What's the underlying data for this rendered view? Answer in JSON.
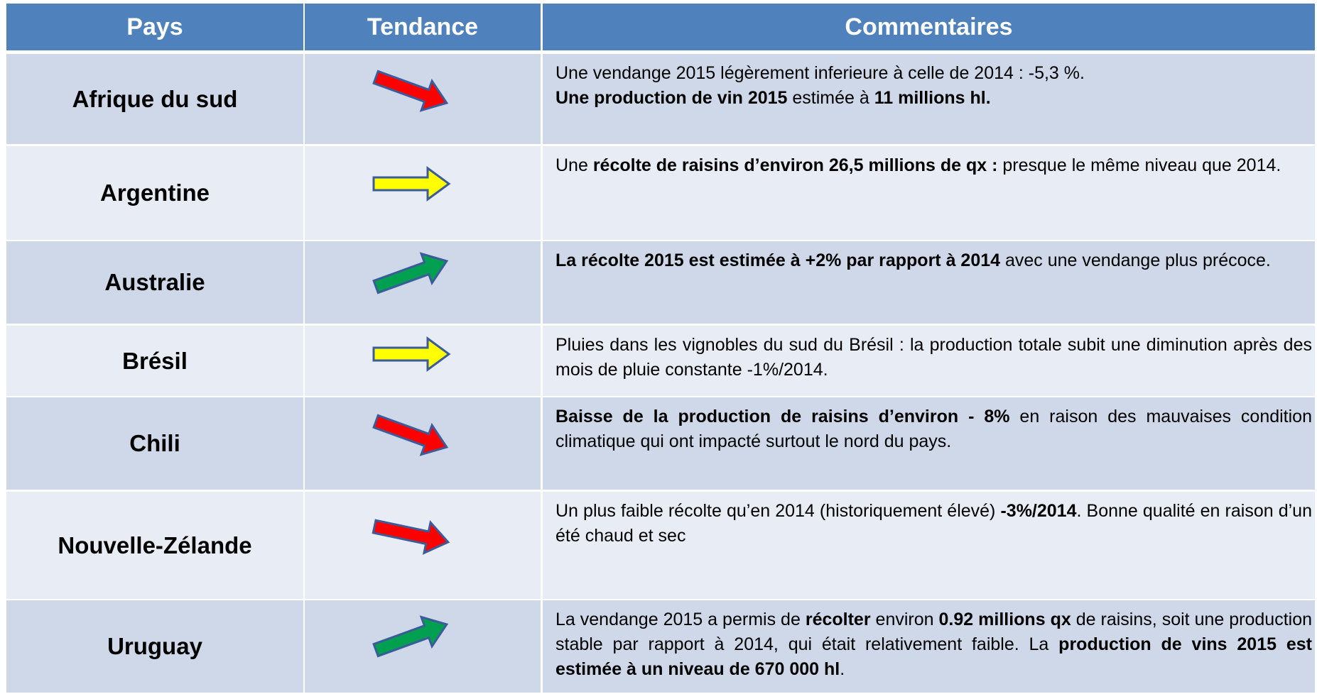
{
  "header": [
    "Pays",
    "Tendance",
    "Commentaires"
  ],
  "rows": [
    {
      "country": "Afrique du sud",
      "comment": [
        [
          {
            "text": "Une vendange 2015 légèrement inferieure à celle de 2014 : -5,3 %.",
            "bold": false
          }
        ],
        [
          {
            "text": "Une production de vin 2015",
            "bold": true
          },
          {
            "text": " estimée à ",
            "bold": false
          },
          {
            "text": "11 millions hl.",
            "bold": true
          }
        ]
      ]
    },
    {
      "country": "Argentine",
      "comment": [
        [
          {
            "text": "Une ",
            "bold": false
          },
          {
            "text": "récolte de raisins d’environ 26,5 millions de qx :",
            "bold": true
          },
          {
            "text": " presque le même niveau que 2014.",
            "bold": false
          }
        ]
      ]
    },
    {
      "country": "Australie",
      "comment": [
        [
          {
            "text": "La récolte 2015  est estimée à +2% par  rapport à 2014",
            "bold": true
          },
          {
            "text": " avec une vendange plus précoce.",
            "bold": false
          }
        ]
      ]
    },
    {
      "country": "Brésil",
      "comment": [
        [
          {
            "text": "Pluies  dans les vignobles du sud du Brésil : la production totale subit une diminution après des mois de pluie constante -1%/2014.",
            "bold": false
          }
        ]
      ]
    },
    {
      "country": "Chili",
      "comment": [
        [
          {
            "text": "Baisse de la production de raisins d’environ - 8%",
            "bold": true
          },
          {
            "text": " en raison des mauvaises condition climatique qui ont impacté surtout le nord du pays.",
            "bold": false
          }
        ]
      ]
    },
    {
      "country": "Nouvelle-Zélande",
      "comment": [
        [
          {
            "text": "Un plus faible récolte qu’en 2014 (historiquement élevé) ",
            "bold": false
          },
          {
            "text": "-3%/2014",
            "bold": true
          },
          {
            "text": ". Bonne qualité en raison d’un été chaud et sec",
            "bold": false
          }
        ]
      ]
    },
    {
      "country": "Uruguay",
      "comment": [
        [
          {
            "text": "La vendange 2015 a permis de ",
            "bold": false
          },
          {
            "text": "récolter",
            "bold": true
          },
          {
            "text": " environ ",
            "bold": false
          },
          {
            "text": "0.92 millions qx",
            "bold": true
          },
          {
            "text": " de raisins, soit une production stable par rapport à 2014, qui était relativement faible. La ",
            "bold": false
          },
          {
            "text": "production de vins 2015 est estimée à un niveau de  670 000 hl",
            "bold": true
          },
          {
            "text": ".",
            "bold": false
          }
        ]
      ]
    }
  ]
}
